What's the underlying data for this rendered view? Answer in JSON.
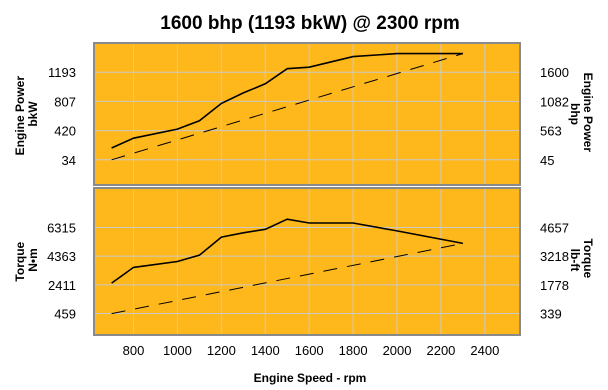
{
  "chart_data": {
    "type": "line",
    "title": "1600 bhp (1193 bkW) @ 2300 rpm",
    "xlabel": "Engine Speed - rpm",
    "x_ticks": [
      "800",
      "1000",
      "1200",
      "1400",
      "1600",
      "1800",
      "2000",
      "2200",
      "2400"
    ],
    "xlim": [
      620,
      2560
    ],
    "colors": {
      "plot_background": "#FFB81C",
      "line": "#000000",
      "grid": "#c9c9c9",
      "frame": "#8a8a8a"
    },
    "grid": true,
    "panels": [
      {
        "name": "power",
        "ylabel_left": [
          "Engine Power",
          "bkW"
        ],
        "ylabel_right": [
          "Engine Power",
          "bhp"
        ],
        "left_ticks": [
          "1193",
          "807",
          "420",
          "34"
        ],
        "left_tick_values": [
          1193,
          807,
          420,
          34
        ],
        "right_ticks": [
          "1600",
          "1082",
          "563",
          "45"
        ],
        "ylim": [
          -300,
          1580
        ],
        "series": [
          {
            "style": "solid",
            "x": [
              700,
              800,
              1000,
              1100,
              1200,
              1300,
              1400,
              1500,
              1600,
              1800,
              2000,
              2300
            ],
            "y": [
              190,
              320,
              440,
              550,
              780,
              920,
              1040,
              1240,
              1260,
              1400,
              1440,
              1440
            ]
          },
          {
            "style": "dashed",
            "x": [
              700,
              2300
            ],
            "y": [
              34,
              1440
            ]
          }
        ]
      },
      {
        "name": "torque",
        "ylabel_left": [
          "Torque",
          "N•m"
        ],
        "ylabel_right": [
          "Torque",
          "lb-ft"
        ],
        "left_ticks": [
          "6315",
          "4363",
          "2411",
          "459"
        ],
        "left_tick_values": [
          6315,
          4363,
          2411,
          459
        ],
        "right_ticks": [
          "4657",
          "3218",
          "1778",
          "339"
        ],
        "ylim": [
          -1000,
          9000
        ],
        "series": [
          {
            "style": "solid",
            "x": [
              700,
              800,
              1000,
              1100,
              1200,
              1300,
              1400,
              1500,
              1600,
              1800,
              2000,
              2300
            ],
            "y": [
              2530,
              3600,
              4000,
              4430,
              5660,
              5950,
              6190,
              6880,
              6620,
              6620,
              6080,
              5230
            ]
          },
          {
            "style": "dashed",
            "x": [
              700,
              2300
            ],
            "y": [
              459,
              5230
            ]
          }
        ]
      }
    ]
  }
}
